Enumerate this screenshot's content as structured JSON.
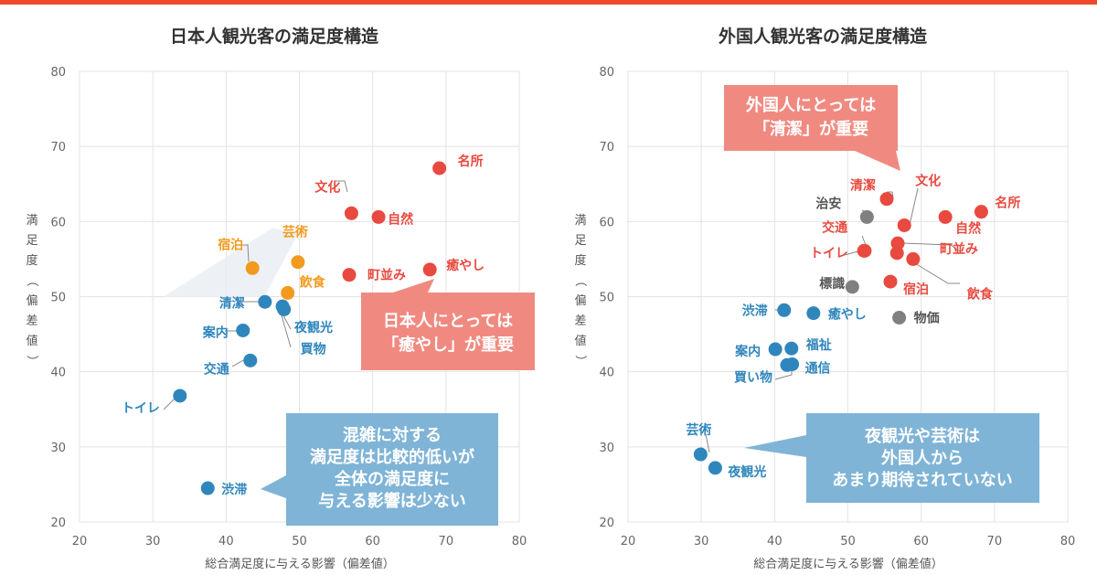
{
  "chart_data": [
    {
      "type": "scatter",
      "title": "日本人観光客の満足度構造",
      "xlabel": "総合満足度に与える影響（偏差値）",
      "ylabel": "満足度（偏差値）",
      "xlim": [
        20,
        80
      ],
      "ylim": [
        20,
        80
      ],
      "xticks": [
        20,
        30,
        40,
        50,
        60,
        70,
        80
      ],
      "yticks": [
        20,
        30,
        40,
        50,
        60,
        70,
        80
      ],
      "grid": true,
      "series": [
        {
          "color": "#e84a3f",
          "points": [
            {
              "label": "名所",
              "x": 69.1,
              "y": 67.1
            },
            {
              "label": "文化",
              "x": 57.1,
              "y": 61.1
            },
            {
              "label": "自然",
              "x": 60.8,
              "y": 60.6
            },
            {
              "label": "町並み",
              "x": 56.8,
              "y": 52.9
            },
            {
              "label": "癒やし",
              "x": 67.8,
              "y": 53.6
            }
          ]
        },
        {
          "color": "#f29a1d",
          "points": [
            {
              "label": "宿泊",
              "x": 43.6,
              "y": 53.8
            },
            {
              "label": "芸術",
              "x": 49.8,
              "y": 54.6
            },
            {
              "label": "飲食",
              "x": 48.4,
              "y": 50.5
            }
          ]
        },
        {
          "color": "#2f86bc",
          "points": [
            {
              "label": "清潔",
              "x": 45.3,
              "y": 49.3
            },
            {
              "label": "夜観光",
              "x": 47.7,
              "y": 48.7
            },
            {
              "label": "買物",
              "x": 47.9,
              "y": 48.3
            },
            {
              "label": "案内",
              "x": 42.3,
              "y": 45.5
            },
            {
              "label": "交通",
              "x": 43.3,
              "y": 41.5
            },
            {
              "label": "トイレ",
              "x": 33.7,
              "y": 36.8
            },
            {
              "label": "渋滞",
              "x": 37.5,
              "y": 24.5
            }
          ]
        }
      ],
      "annotations": [
        {
          "text": [
            "日本人にとっては",
            "「癒やし」が重要"
          ],
          "color": "#f08a80"
        },
        {
          "text": [
            "混雑に対する",
            "満足度は比較的低いが",
            "全体の満足度に",
            "与える影響は少ない"
          ],
          "color": "#7fb4d6"
        }
      ]
    },
    {
      "type": "scatter",
      "title": "外国人観光客の満足度構造",
      "xlabel": "総合満足度に与える影響（偏差値）",
      "ylabel": "満足度（偏差値）",
      "xlim": [
        20,
        80
      ],
      "ylim": [
        20,
        80
      ],
      "xticks": [
        20,
        30,
        40,
        50,
        60,
        70,
        80
      ],
      "yticks": [
        20,
        30,
        40,
        50,
        60,
        70,
        80
      ],
      "grid": true,
      "series": [
        {
          "color": "#e84a3f",
          "points": [
            {
              "label": "清潔",
              "x": 55.3,
              "y": 63.0
            },
            {
              "label": "文化",
              "x": 57.7,
              "y": 59.5
            },
            {
              "label": "自然",
              "x": 63.3,
              "y": 60.6
            },
            {
              "label": "名所",
              "x": 68.2,
              "y": 61.3
            },
            {
              "label": "交通",
              "x": 52.2,
              "y": 56.1
            },
            {
              "label": "トイレ",
              "x": 52.3,
              "y": 56.1
            },
            {
              "label": "町並み",
              "x": 56.8,
              "y": 57.1
            },
            {
              "label": "町並み2",
              "x": 56.7,
              "y": 55.8
            },
            {
              "label": "飲食",
              "x": 58.9,
              "y": 55.0
            },
            {
              "label": "宿泊",
              "x": 55.8,
              "y": 52.0
            }
          ]
        },
        {
          "color": "#808080",
          "points": [
            {
              "label": "治安",
              "x": 52.6,
              "y": 60.6
            },
            {
              "label": "標識",
              "x": 50.6,
              "y": 51.3
            },
            {
              "label": "物価",
              "x": 57.0,
              "y": 47.2
            }
          ]
        },
        {
          "color": "#2f86bc",
          "points": [
            {
              "label": "渋滞",
              "x": 41.3,
              "y": 48.2
            },
            {
              "label": "癒やし",
              "x": 45.3,
              "y": 47.8
            },
            {
              "label": "案内",
              "x": 40.1,
              "y": 43.0
            },
            {
              "label": "福祉",
              "x": 42.3,
              "y": 43.1
            },
            {
              "label": "買い物",
              "x": 41.7,
              "y": 40.9
            },
            {
              "label": "通信",
              "x": 42.4,
              "y": 41.0
            },
            {
              "label": "芸術",
              "x": 29.9,
              "y": 29.0
            },
            {
              "label": "夜観光",
              "x": 31.9,
              "y": 27.2
            }
          ]
        }
      ],
      "annotations": [
        {
          "text": [
            "外国人にとっては",
            "「清潔」が重要"
          ],
          "color": "#f08a80"
        },
        {
          "text": [
            "夜観光や芸術は",
            "外国人から",
            "あまり期待されていない"
          ],
          "color": "#7fb4d6"
        }
      ]
    }
  ]
}
